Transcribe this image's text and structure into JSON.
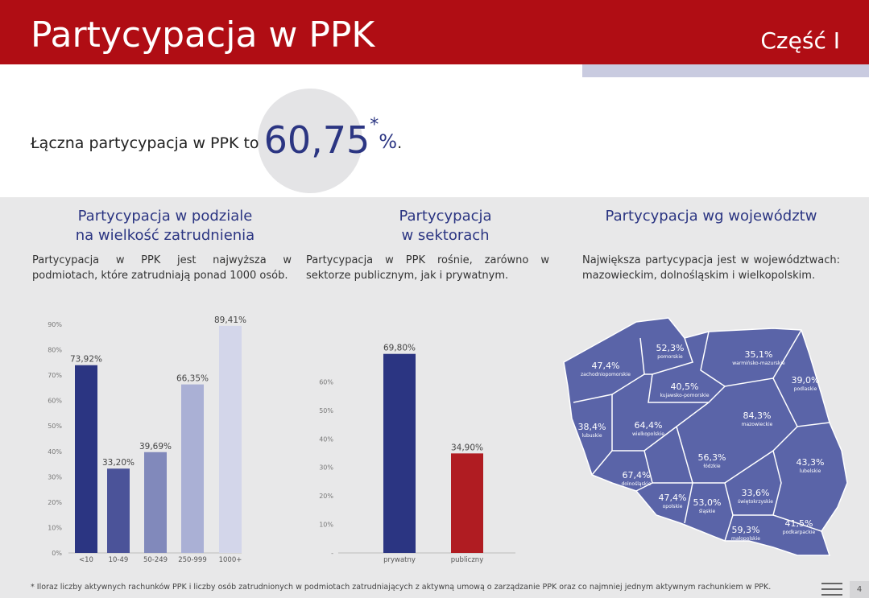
{
  "header": {
    "title": "Partycypacja w PPK",
    "part": "Część I"
  },
  "headline": {
    "text": "Łączna partycypacja w PPK to",
    "value": "60,75",
    "asterisk": "*",
    "unit": "%",
    "end": "."
  },
  "sections": [
    {
      "heading": [
        "Partycypacja w podziale",
        "na wielkość zatrudnienia"
      ],
      "text": "Partycypacja w PPK jest najwyższa w podmiotach, które zatrudniają ponad 1000 osób."
    },
    {
      "heading": [
        "Partycypacja",
        "w sektorach"
      ],
      "text": "Partycypacja w PPK rośnie, zarówno w sektorze publicznym, jak i prywatnym."
    },
    {
      "heading": [
        "Partycypacja wg województw"
      ],
      "text": "Największa partycypacja jest w województwach: mazowieckim, dolnośląskim i wielkopolskim."
    }
  ],
  "chart_data": [
    {
      "type": "bar",
      "categories": [
        "<10",
        "10-49",
        "50-249",
        "250-999",
        "1000+"
      ],
      "values": [
        73.92,
        33.2,
        39.69,
        66.35,
        89.41
      ],
      "value_labels": [
        "73,92%",
        "33,20%",
        "39,69%",
        "66,35%",
        "89,41%"
      ],
      "colors": [
        "#2b3582",
        "#4b5399",
        "#8189bb",
        "#aab0d5",
        "#d3d6ea"
      ],
      "ylim": [
        0,
        90
      ],
      "yticks": [
        {
          "value": 0,
          "label": "0%"
        },
        {
          "value": 10,
          "label": "10%"
        },
        {
          "value": 20,
          "label": "20%"
        },
        {
          "value": 30,
          "label": "30%"
        },
        {
          "value": 40,
          "label": "40%"
        },
        {
          "value": 50,
          "label": "50%"
        },
        {
          "value": 60,
          "label": "60%"
        },
        {
          "value": 70,
          "label": "70%"
        },
        {
          "value": 80,
          "label": "80%"
        },
        {
          "value": 90,
          "label": "90%"
        }
      ]
    },
    {
      "type": "bar",
      "categories": [
        "prywatny",
        "publiczny"
      ],
      "values": [
        69.8,
        34.9
      ],
      "value_labels": [
        "69,80%",
        "34,90%"
      ],
      "colors": [
        "#2b3582",
        "#b01c22"
      ],
      "ylim": [
        0,
        70
      ],
      "yticks": [
        {
          "value": 0,
          "label": "-"
        },
        {
          "value": 10,
          "label": "10%"
        },
        {
          "value": 20,
          "label": "20%"
        },
        {
          "value": 30,
          "label": "30%"
        },
        {
          "value": 40,
          "label": "40%"
        },
        {
          "value": 50,
          "label": "50%"
        },
        {
          "value": 60,
          "label": "60%"
        }
      ]
    }
  ],
  "map": {
    "regions": [
      {
        "name": "zachodniopomorskie",
        "value": "47,4%"
      },
      {
        "name": "pomorskie",
        "value": "52,3%"
      },
      {
        "name": "warmińsko-mazurskie",
        "value": "35,1%"
      },
      {
        "name": "podlaskie",
        "value": "39,0%"
      },
      {
        "name": "kujawsko-pomorskie",
        "value": "40,5%"
      },
      {
        "name": "mazowieckie",
        "value": "84,3%"
      },
      {
        "name": "lubuskie",
        "value": "38,4%"
      },
      {
        "name": "wielkopolskie",
        "value": "64,4%"
      },
      {
        "name": "łódzkie",
        "value": "56,3%"
      },
      {
        "name": "lubelskie",
        "value": "43,3%"
      },
      {
        "name": "dolnośląskie",
        "value": "67,4%"
      },
      {
        "name": "opolskie",
        "value": "47,4%"
      },
      {
        "name": "śląskie",
        "value": "53,0%"
      },
      {
        "name": "świętokrzyskie",
        "value": "33,6%"
      },
      {
        "name": "małopolskie",
        "value": "59,3%"
      },
      {
        "name": "podkarpackie",
        "value": "41,5%"
      }
    ]
  },
  "footnote": "* Iloraz liczby aktywnych rachunków PPK i liczby osób zatrudnionych w podmiotach zatrudniających z aktywną umową o zarządzanie PPK oraz co najmniej jednym aktywnym rachunkiem w PPK.",
  "page_number": "4"
}
